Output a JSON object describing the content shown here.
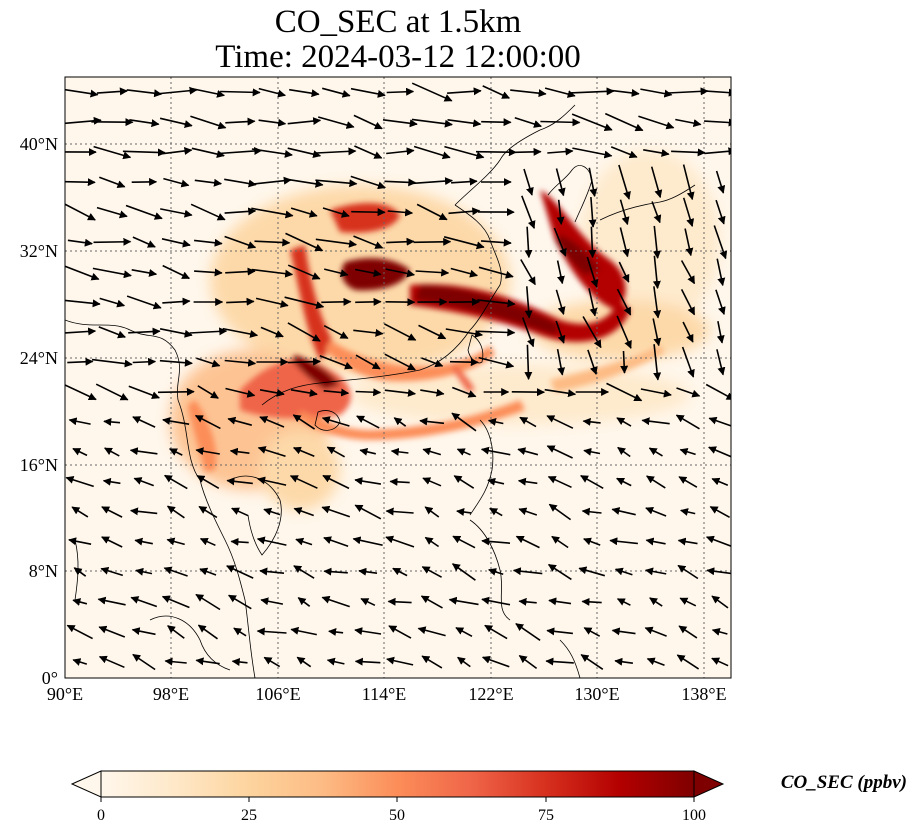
{
  "title": {
    "line1": "CO_SEC at 1.5km",
    "line2": "Time: 2024-03-12 12:00:00"
  },
  "map": {
    "extent": {
      "lon_min": 90,
      "lon_max": 140,
      "lat_min": 0,
      "lat_max": 45
    },
    "x_ticks": [
      {
        "lon": 90,
        "label": "90°E"
      },
      {
        "lon": 98,
        "label": "98°E"
      },
      {
        "lon": 106,
        "label": "106°E"
      },
      {
        "lon": 114,
        "label": "114°E"
      },
      {
        "lon": 122,
        "label": "122°E"
      },
      {
        "lon": 130,
        "label": "130°E"
      },
      {
        "lon": 138,
        "label": "138°E"
      }
    ],
    "y_ticks": [
      {
        "lat": 0,
        "label": "0°"
      },
      {
        "lat": 8,
        "label": "8°N"
      },
      {
        "lat": 16,
        "label": "16°N"
      },
      {
        "lat": 24,
        "label": "24°N"
      },
      {
        "lat": 32,
        "label": "32°N"
      },
      {
        "lat": 40,
        "label": "40°N"
      }
    ],
    "gridlines": true,
    "wind_vectors": true
  },
  "colorbar": {
    "label": "CO_SEC (ppbv)",
    "min": 0,
    "max": 100,
    "extend": "both",
    "ticks": [
      {
        "value": 0,
        "label": "0"
      },
      {
        "value": 25,
        "label": "25"
      },
      {
        "value": 50,
        "label": "50"
      },
      {
        "value": 75,
        "label": "75"
      },
      {
        "value": 100,
        "label": "100"
      }
    ],
    "colormap": "OrRd",
    "colors": [
      "#fff7ec",
      "#fee8c8",
      "#fdd49e",
      "#fdbb84",
      "#fc8d59",
      "#ef6548",
      "#d7301f",
      "#b30000",
      "#7f0000"
    ]
  }
}
